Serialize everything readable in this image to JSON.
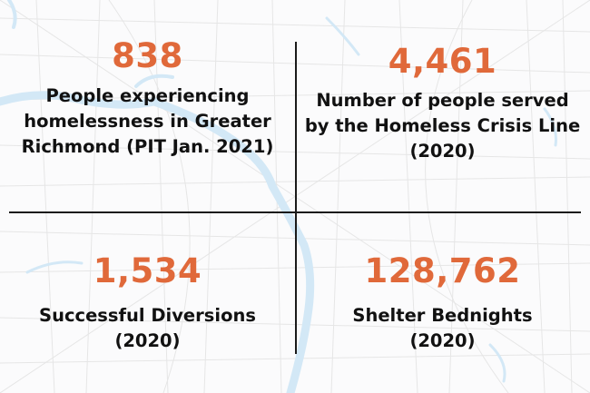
{
  "colors": {
    "accent": "#e0693a",
    "text": "#111111",
    "water": "#cfe6f5",
    "roads": "#e4e4e4"
  },
  "stats": [
    {
      "value": "838",
      "label": "People experiencing homelessness in Greater Richmond (PIT Jan. 2021)"
    },
    {
      "value": "4,461",
      "label": "Number of people served by the Homeless Crisis Line (2020)"
    },
    {
      "value": "1,534",
      "label": "Successful Diversions (2020)"
    },
    {
      "value": "128,762",
      "label": "Shelter Bednights (2020)"
    }
  ]
}
